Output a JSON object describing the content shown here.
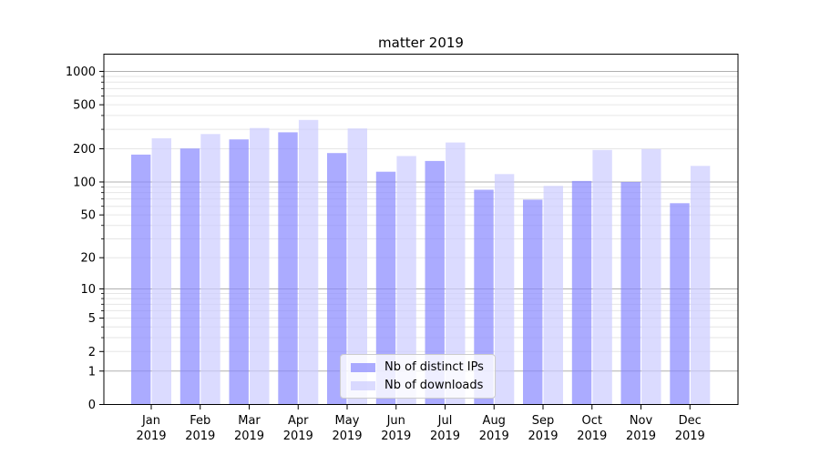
{
  "chart_data": {
    "type": "bar",
    "title": "matter 2019",
    "xlabel": "",
    "ylabel": "",
    "yscale": "log(1+y)",
    "ylim": [
      0,
      1430
    ],
    "grid": "both",
    "bar_alpha": 0.7,
    "yticks": [
      0,
      1,
      2,
      5,
      10,
      20,
      50,
      100,
      200,
      500,
      1000
    ],
    "xtick_labels": [
      [
        "Jan",
        "2019"
      ],
      [
        "Feb",
        "2019"
      ],
      [
        "Mar",
        "2019"
      ],
      [
        "Apr",
        "2019"
      ],
      [
        "May",
        "2019"
      ],
      [
        "Jun",
        "2019"
      ],
      [
        "Jul",
        "2019"
      ],
      [
        "Aug",
        "2019"
      ],
      [
        "Sep",
        "2019"
      ],
      [
        "Oct",
        "2019"
      ],
      [
        "Nov",
        "2019"
      ],
      [
        "Dec",
        "2019"
      ]
    ],
    "categories": [
      "Jan 2019",
      "Feb 2019",
      "Mar 2019",
      "Apr 2019",
      "May 2019",
      "Jun 2019",
      "Jul 2019",
      "Aug 2019",
      "Sep 2019",
      "Oct 2019",
      "Nov 2019",
      "Dec 2019"
    ],
    "series": [
      {
        "name": "Nb of distinct IPs",
        "color": "#8888ff",
        "values": [
          177,
          201,
          243,
          282,
          183,
          124,
          155,
          85,
          69,
          102,
          100,
          64
        ]
      },
      {
        "name": "Nb of downloads",
        "color": "#ccccff",
        "values": [
          249,
          272,
          308,
          365,
          305,
          172,
          228,
          118,
          92,
          195,
          199,
          140
        ]
      }
    ],
    "legend": {
      "position": "lower center"
    }
  }
}
